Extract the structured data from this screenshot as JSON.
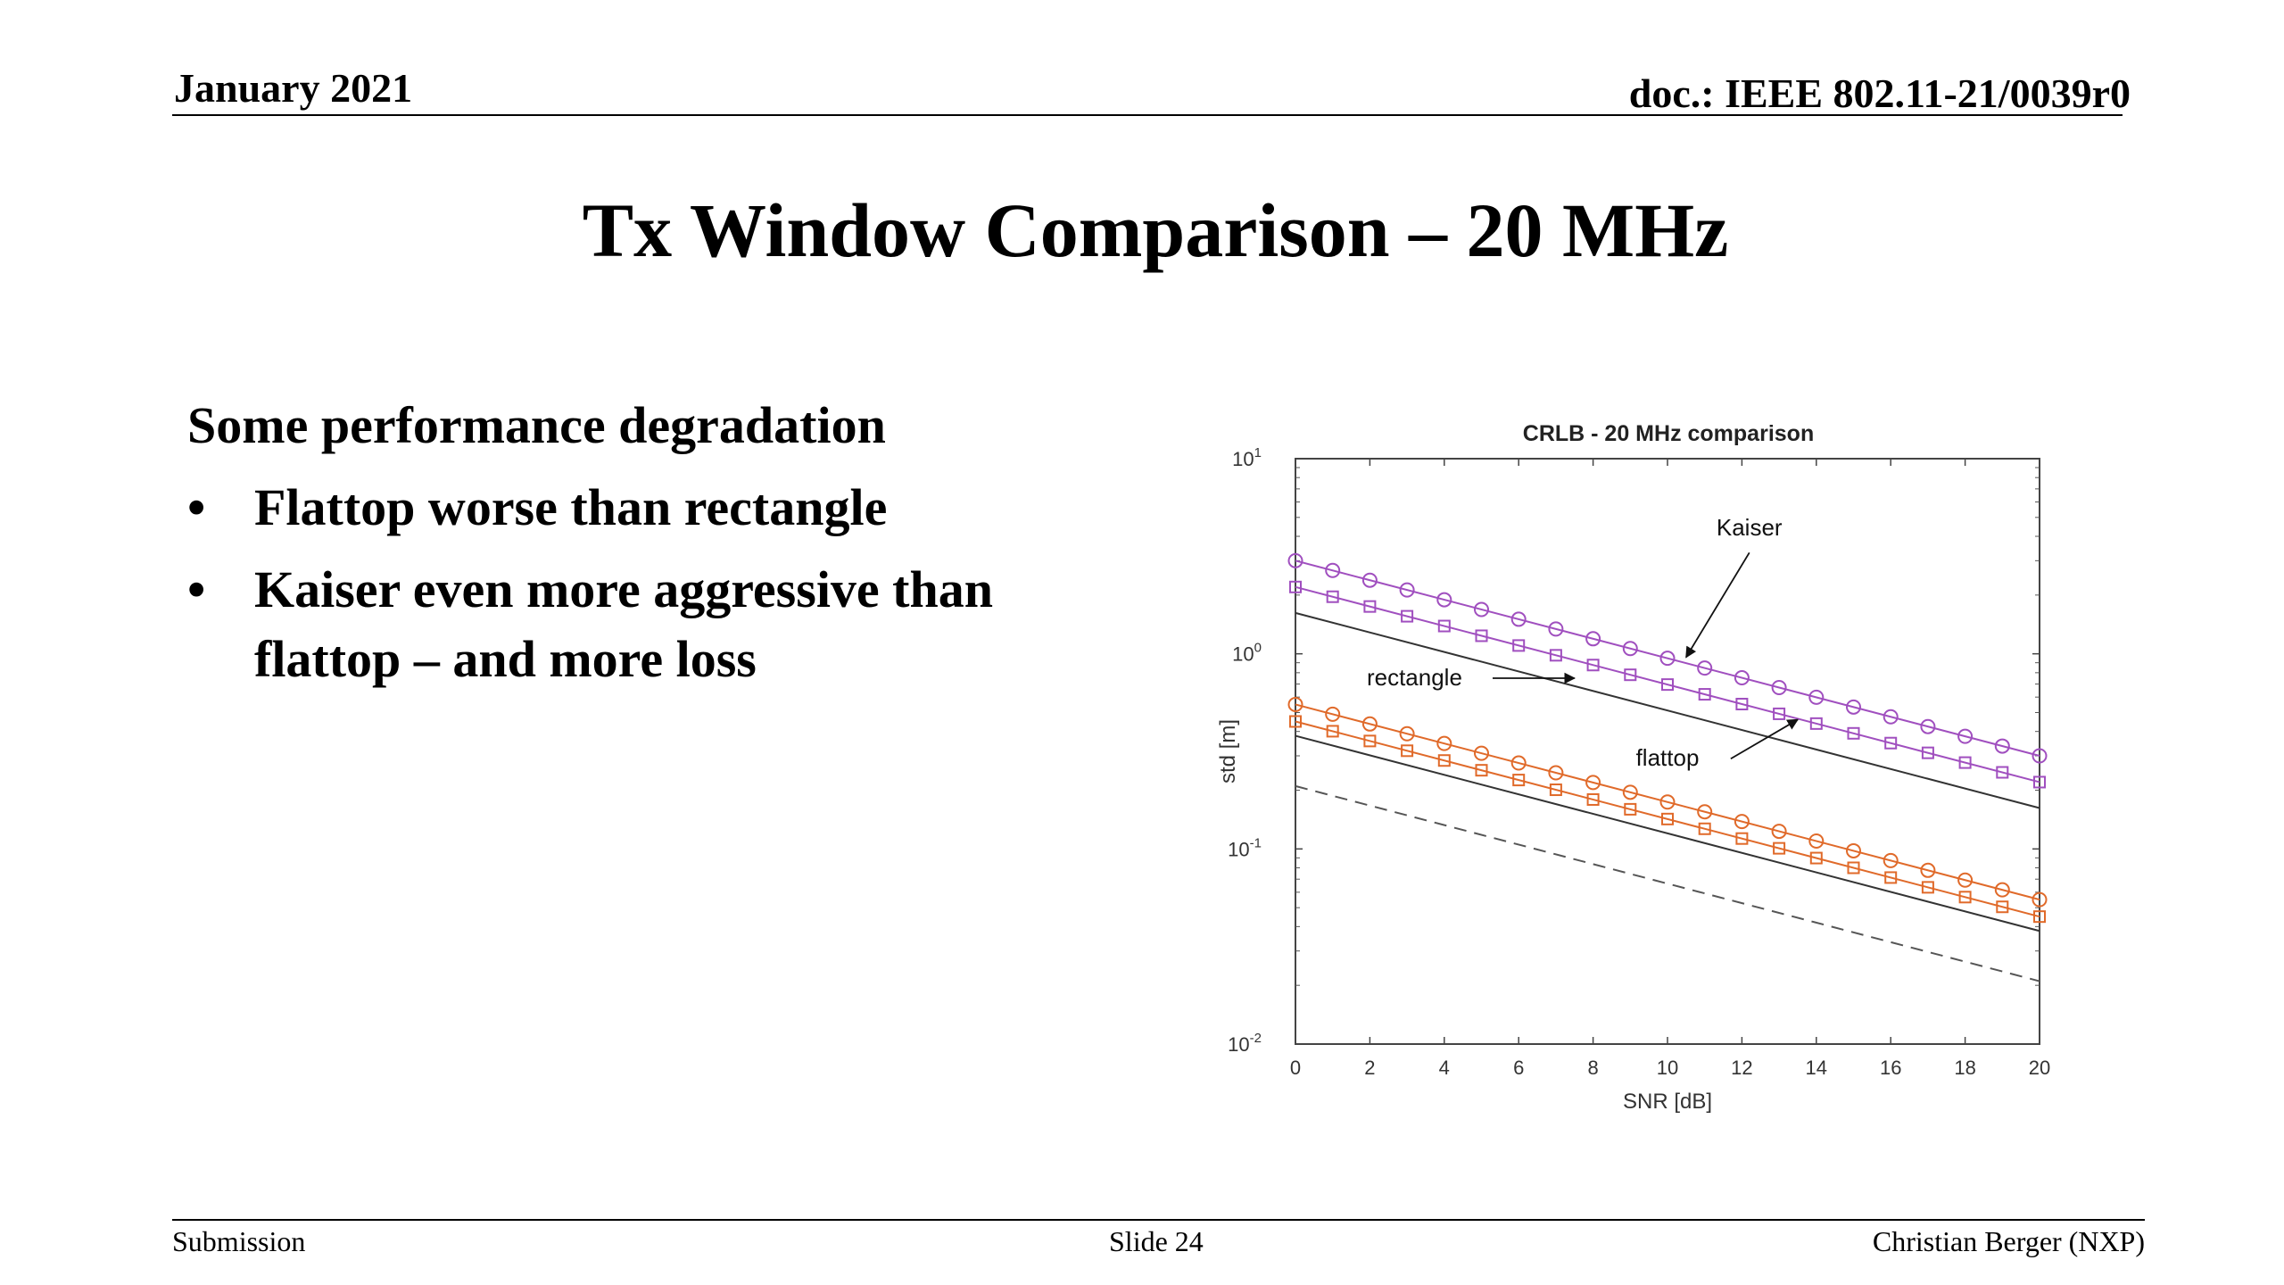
{
  "header": {
    "date": "January 2021",
    "doc": "doc.: IEEE 802.11-21/0039r0"
  },
  "slide": {
    "title": "Tx Window Comparison – 20 MHz",
    "lead": "Some performance degradation",
    "bullets": [
      "Flattop worse than rectangle",
      "Kaiser even more aggressive than flattop – and more loss"
    ],
    "bullet_glyph": "•"
  },
  "footer": {
    "left": "Submission",
    "center": "Slide 24",
    "right": "Christian Berger (NXP)"
  },
  "chart_data": {
    "type": "line",
    "title": "CRLB - 20 MHz comparison",
    "xlabel": "SNR [dB]",
    "ylabel": "std [m]",
    "xlim": [
      0,
      20
    ],
    "ylim": [
      0.01,
      10
    ],
    "yscale": "log",
    "x_ticks": [
      "0",
      "2",
      "4",
      "6",
      "8",
      "10",
      "12",
      "14",
      "16",
      "18",
      "20"
    ],
    "y_ticks": [
      {
        "value": 10,
        "base": "10",
        "exp": "1"
      },
      {
        "value": 1,
        "base": "10",
        "exp": "0"
      },
      {
        "value": 0.1,
        "base": "10",
        "exp": "-1"
      },
      {
        "value": 0.01,
        "base": "10",
        "exp": "-2"
      }
    ],
    "grid": false,
    "x": [
      0,
      20
    ],
    "series": [
      {
        "values": [
          3.0,
          0.3
        ],
        "color": "#a04fbf",
        "marker": "circle",
        "marker_x": [
          0,
          1,
          2,
          3,
          4,
          5,
          6,
          7,
          8,
          9,
          10,
          11,
          12,
          13,
          14,
          15,
          16,
          17,
          18,
          19,
          20
        ]
      },
      {
        "values": [
          2.2,
          0.22
        ],
        "color": "#a04fbf",
        "marker": "square",
        "marker_x": [
          0,
          1,
          2,
          3,
          4,
          5,
          6,
          7,
          8,
          9,
          10,
          11,
          12,
          13,
          14,
          15,
          16,
          17,
          18,
          19,
          20
        ]
      },
      {
        "values": [
          1.62,
          0.162
        ],
        "color": "#333333",
        "marker": "none",
        "dash": "none"
      },
      {
        "values": [
          0.55,
          0.055
        ],
        "color": "#e06a2a",
        "marker": "circle",
        "marker_x": [
          0,
          1,
          2,
          3,
          4,
          5,
          6,
          7,
          8,
          9,
          10,
          11,
          12,
          13,
          14,
          15,
          16,
          17,
          18,
          19,
          20
        ]
      },
      {
        "values": [
          0.45,
          0.045
        ],
        "color": "#e06a2a",
        "marker": "square",
        "marker_x": [
          0,
          1,
          2,
          3,
          4,
          5,
          6,
          7,
          8,
          9,
          10,
          11,
          12,
          13,
          14,
          15,
          16,
          17,
          18,
          19,
          20
        ]
      },
      {
        "values": [
          0.38,
          0.038
        ],
        "color": "#333333",
        "marker": "none",
        "dash": "none"
      },
      {
        "values": [
          0.21,
          0.021
        ],
        "color": "#555555",
        "marker": "none",
        "dash": "dashed"
      }
    ],
    "annotations": [
      {
        "text": "Kaiser",
        "tx": 12.2,
        "ty": 4.4,
        "ax1": 12.2,
        "ay1": 3.3,
        "ax2": 10.5,
        "ay2": 0.96
      },
      {
        "text": "rectangle",
        "tx": 3.2,
        "ty": 0.75,
        "ax1": 5.3,
        "ay1": 0.75,
        "ax2": 7.5,
        "ay2": 0.75
      },
      {
        "text": "flattop",
        "tx": 10.0,
        "ty": 0.29,
        "ax1": 11.7,
        "ay1": 0.29,
        "ax2": 13.5,
        "ay2": 0.46
      }
    ]
  }
}
